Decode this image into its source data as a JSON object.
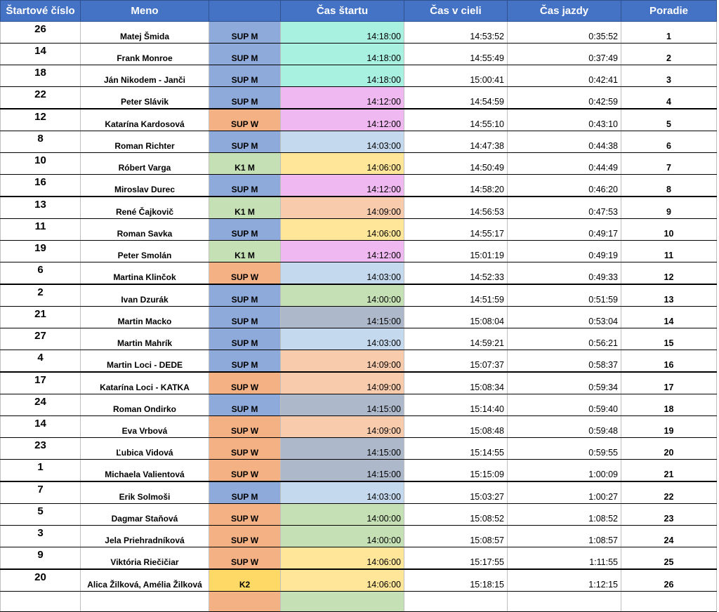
{
  "headers": {
    "start_number": "Štartové číslo",
    "name": "Meno",
    "category": "",
    "start_time": "Čas štartu",
    "finish_time": "Čas v cieli",
    "ride_time": "Čas jazdy",
    "rank": "Poradie"
  },
  "colors": {
    "header_bg": "#4472c4",
    "sup_m": "#8eaadb",
    "sup_w": "#f4b183",
    "k1_m": "#c5e0b4",
    "k2": "#ffd966",
    "start_1418": "#a8f0e0",
    "start_1412": "#f0b8f0",
    "start_1403": "#c5d9ee",
    "start_1406": "#ffe699",
    "start_1409": "#f8cbad",
    "start_1400": "#c5e0b4",
    "start_1415": "#adb9ca"
  },
  "rows": [
    {
      "num": "26",
      "name": "Matej Šmida",
      "cat": "SUP M",
      "start": "14:18:00",
      "finish": "14:53:52",
      "ride": "0:35:52",
      "rank": "1"
    },
    {
      "num": "14",
      "name": "Frank Monroe",
      "cat": "SUP M",
      "start": "14:18:00",
      "finish": "14:55:49",
      "ride": "0:37:49",
      "rank": "2"
    },
    {
      "num": "18",
      "name": "Ján Nikodem - Janči",
      "cat": "SUP M",
      "start": "14:18:00",
      "finish": "15:00:41",
      "ride": "0:42:41",
      "rank": "3"
    },
    {
      "num": "22",
      "name": "Peter Slávik",
      "cat": "SUP M",
      "start": "14:12:00",
      "finish": "14:54:59",
      "ride": "0:42:59",
      "rank": "4"
    },
    {
      "num": "12",
      "name": "Katarína Kardosová",
      "cat": "SUP W",
      "start": "14:12:00",
      "finish": "14:55:10",
      "ride": "0:43:10",
      "rank": "5"
    },
    {
      "num": "8",
      "name": "Roman Richter",
      "cat": "SUP M",
      "start": "14:03:00",
      "finish": "14:47:38",
      "ride": "0:44:38",
      "rank": "6"
    },
    {
      "num": "10",
      "name": "Róbert Varga",
      "cat": "K1 M",
      "start": "14:06:00",
      "finish": "14:50:49",
      "ride": "0:44:49",
      "rank": "7"
    },
    {
      "num": "16",
      "name": "Miroslav Durec",
      "cat": "SUP M",
      "start": "14:12:00",
      "finish": "14:58:20",
      "ride": "0:46:20",
      "rank": "8"
    },
    {
      "num": "13",
      "name": "René Čajkovič",
      "cat": "K1 M",
      "start": "14:09:00",
      "finish": "14:56:53",
      "ride": "0:47:53",
      "rank": "9"
    },
    {
      "num": "11",
      "name": "Roman Savka",
      "cat": "SUP M",
      "start": "14:06:00",
      "finish": "14:55:17",
      "ride": "0:49:17",
      "rank": "10"
    },
    {
      "num": "19",
      "name": "Peter Smolán",
      "cat": "K1 M",
      "start": "14:12:00",
      "finish": "15:01:19",
      "ride": "0:49:19",
      "rank": "11"
    },
    {
      "num": "6",
      "name": "Martina Klinčok",
      "cat": "SUP W",
      "start": "14:03:00",
      "finish": "14:52:33",
      "ride": "0:49:33",
      "rank": "12"
    },
    {
      "num": "2",
      "name": "Ivan Dzurák",
      "cat": "SUP M",
      "start": "14:00:00",
      "finish": "14:51:59",
      "ride": "0:51:59",
      "rank": "13"
    },
    {
      "num": "21",
      "name": "Martin Macko",
      "cat": "SUP M",
      "start": "14:15:00",
      "finish": "15:08:04",
      "ride": "0:53:04",
      "rank": "14"
    },
    {
      "num": "27",
      "name": "Martin Mahrík",
      "cat": "SUP M",
      "start": "14:03:00",
      "finish": "14:59:21",
      "ride": "0:56:21",
      "rank": "15"
    },
    {
      "num": "4",
      "name": "Martin Loci - DEDE",
      "cat": "SUP M",
      "start": "14:09:00",
      "finish": "15:07:37",
      "ride": "0:58:37",
      "rank": "16"
    },
    {
      "num": "17",
      "name": "Katarína Loci - KATKA",
      "cat": "SUP W",
      "start": "14:09:00",
      "finish": "15:08:34",
      "ride": "0:59:34",
      "rank": "17"
    },
    {
      "num": "24",
      "name": "Roman Ondirko",
      "cat": "SUP M",
      "start": "14:15:00",
      "finish": "15:14:40",
      "ride": "0:59:40",
      "rank": "18"
    },
    {
      "num": "14",
      "name": "Eva Vrbová",
      "cat": "SUP W",
      "start": "14:09:00",
      "finish": "15:08:48",
      "ride": "0:59:48",
      "rank": "19"
    },
    {
      "num": "23",
      "name": "Ľubica Vidová",
      "cat": "SUP W",
      "start": "14:15:00",
      "finish": "15:14:55",
      "ride": "0:59:55",
      "rank": "20"
    },
    {
      "num": "1",
      "name": "Michaela Valientová",
      "cat": "SUP W",
      "start": "14:15:00",
      "finish": "15:15:09",
      "ride": "1:00:09",
      "rank": "21"
    },
    {
      "num": "7",
      "name": "Erik Solmoši",
      "cat": "SUP M",
      "start": "14:03:00",
      "finish": "15:03:27",
      "ride": "1:00:27",
      "rank": "22"
    },
    {
      "num": "5",
      "name": "Dagmar Staňová",
      "cat": "SUP W",
      "start": "14:00:00",
      "finish": "15:08:52",
      "ride": "1:08:52",
      "rank": "23"
    },
    {
      "num": "3",
      "name": "Jela Priehradníková",
      "cat": "SUP W",
      "start": "14:00:00",
      "finish": "15:08:57",
      "ride": "1:08:57",
      "rank": "24"
    },
    {
      "num": "9",
      "name": "Viktória Riečičiar",
      "cat": "SUP W",
      "start": "14:06:00",
      "finish": "15:17:55",
      "ride": "1:11:55",
      "rank": "25"
    },
    {
      "num": "20",
      "name": "Alica Žilková, Amélia Žilková",
      "cat": "K2",
      "start": "14:06:00",
      "finish": "15:18:15",
      "ride": "1:12:15",
      "rank": "26"
    }
  ]
}
